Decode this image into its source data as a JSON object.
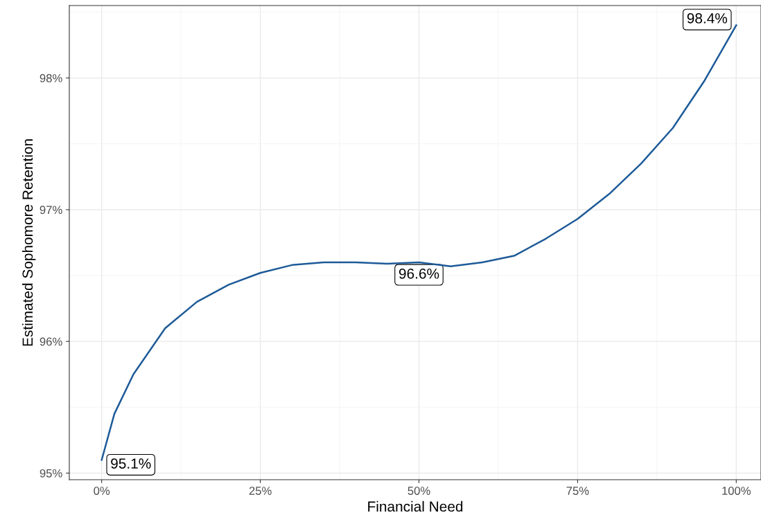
{
  "chart_data": {
    "type": "line",
    "xlabel": "Financial Need",
    "ylabel": "Estimated Sophomore Retention",
    "x": [
      0,
      2,
      5,
      10,
      15,
      20,
      25,
      30,
      35,
      40,
      45,
      50,
      55,
      60,
      65,
      70,
      75,
      80,
      85,
      90,
      95,
      100
    ],
    "series": [
      {
        "color": "#1d5a98",
        "values": [
          95.1,
          95.45,
          95.75,
          96.1,
          96.3,
          96.43,
          96.52,
          96.58,
          96.6,
          96.6,
          96.59,
          96.6,
          96.57,
          96.6,
          96.65,
          96.78,
          96.93,
          97.12,
          97.35,
          97.62,
          97.98,
          98.4
        ],
        "value_labels": [
          "95.1%",
          null,
          null,
          null,
          null,
          null,
          null,
          null,
          null,
          null,
          null,
          "96.6%",
          null,
          null,
          null,
          null,
          null,
          null,
          null,
          null,
          null,
          "98.4%"
        ]
      }
    ],
    "xlim": [
      -5.1,
      103.9
    ],
    "ylim": [
      94.95,
      98.55
    ],
    "xticks": [
      {
        "value": 0,
        "label": "0%"
      },
      {
        "value": 25,
        "label": "25%"
      },
      {
        "value": 50,
        "label": "50%"
      },
      {
        "value": 75,
        "label": "75%"
      },
      {
        "value": 100,
        "label": "100%"
      }
    ],
    "yticks": [
      {
        "value": 95,
        "label": "95%"
      },
      {
        "value": 96,
        "label": "96%"
      },
      {
        "value": 97,
        "label": "97%"
      },
      {
        "value": 98,
        "label": "98%"
      }
    ],
    "grid": true,
    "legend": false,
    "marker": "none",
    "line_style": "solid"
  }
}
